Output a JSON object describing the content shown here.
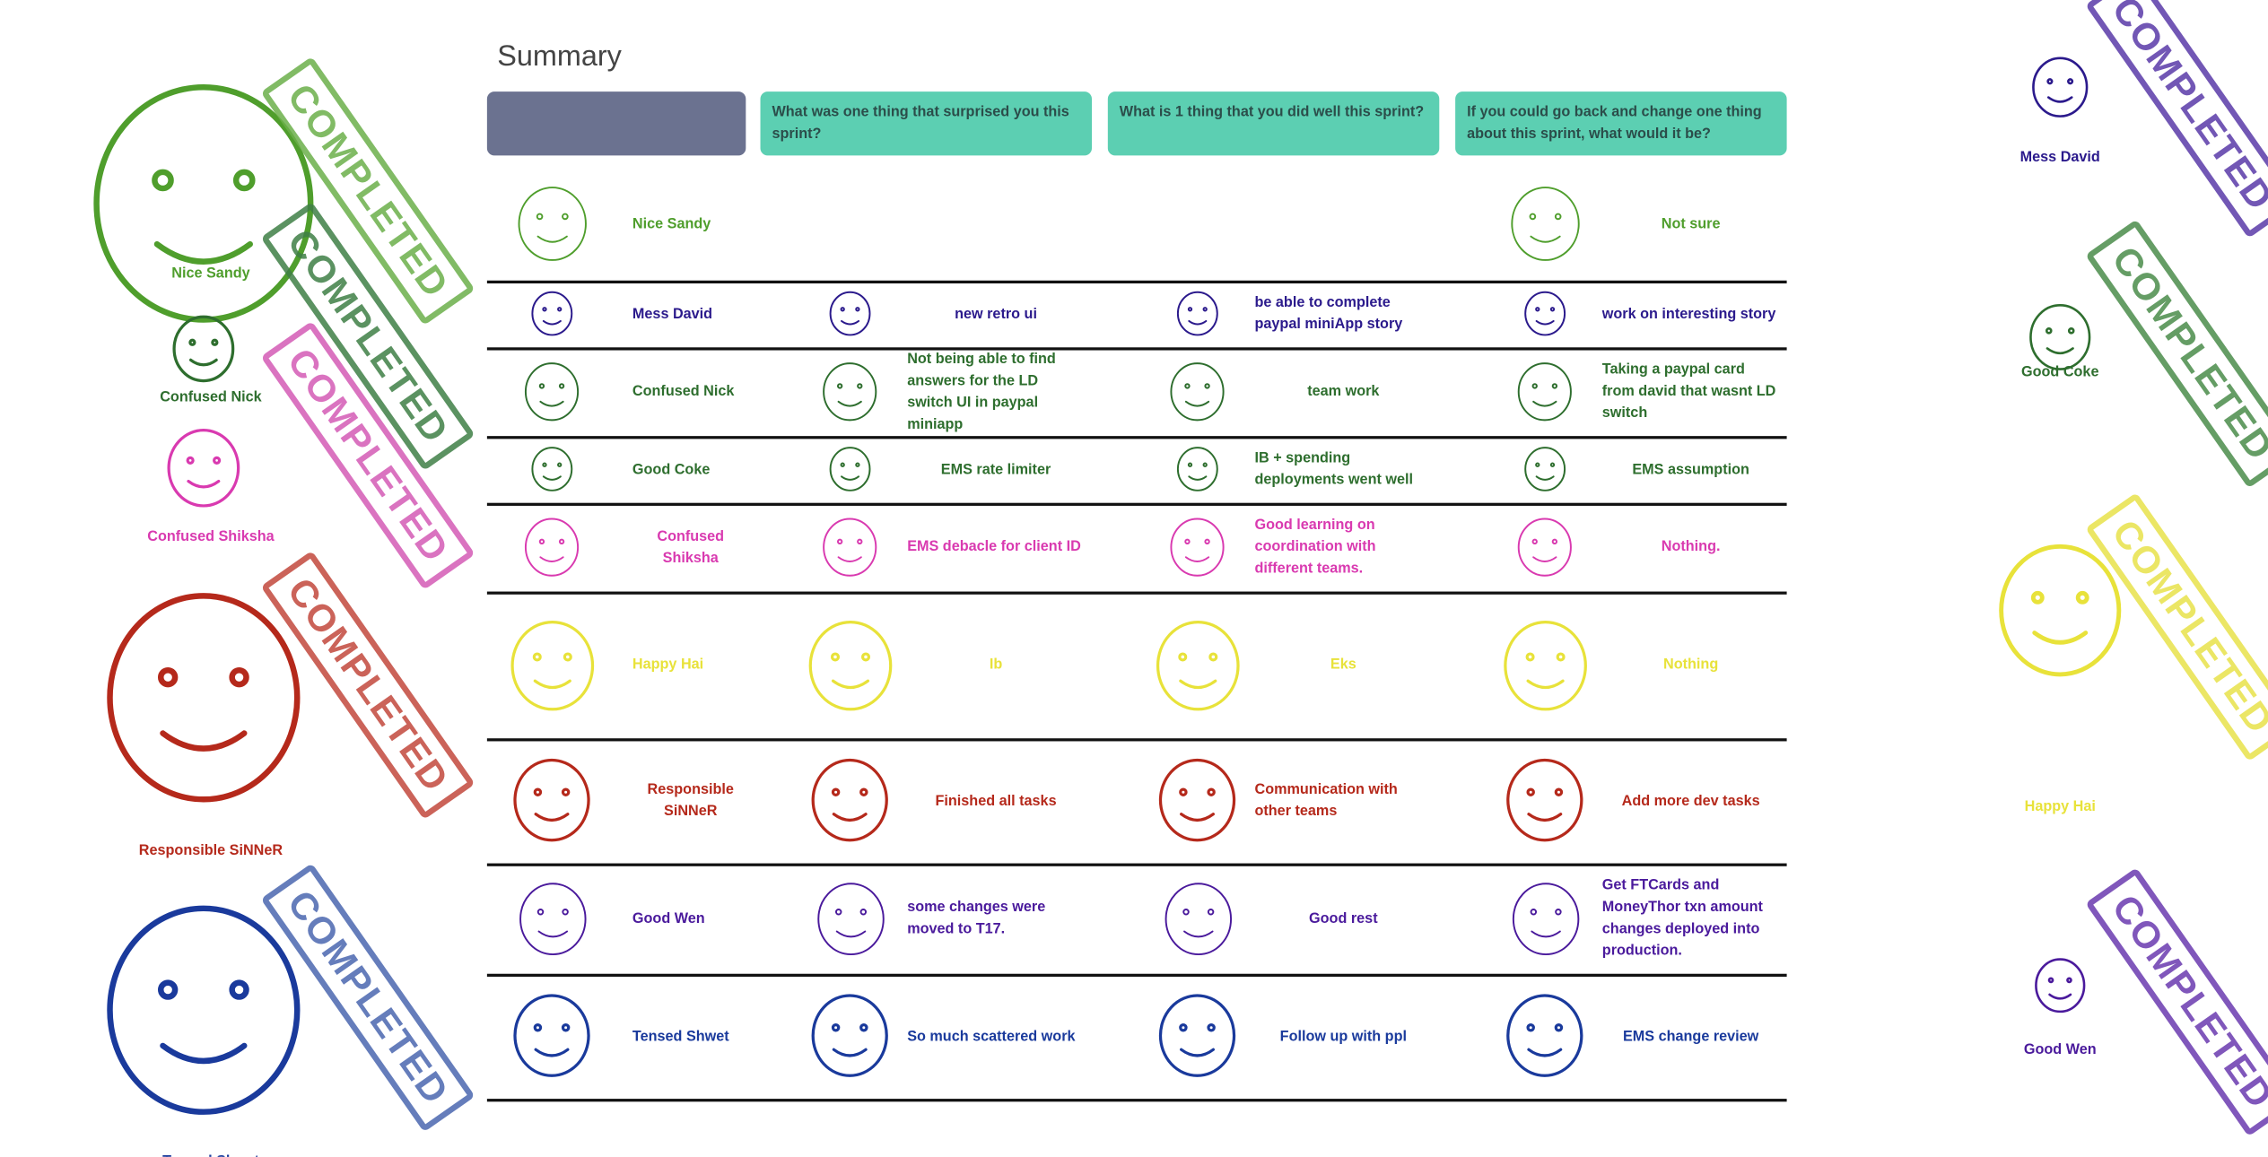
{
  "title": "Summary",
  "stamp": "COMPLETED",
  "columns": [
    "What was one thing that surprised you this sprint?",
    "What is 1 thing that you did well this sprint?",
    "If you could go back and change one thing about this sprint, what would it be?"
  ],
  "rows": [
    {
      "name": "Nice Sandy",
      "color": "#4f9e2c",
      "answers": [
        null,
        null,
        "Not sure"
      ]
    },
    {
      "name": "Mess David",
      "color": "#2b1a8c",
      "answers": [
        "new retro ui",
        "be able to complete paypal miniApp story",
        "work on interesting story"
      ]
    },
    {
      "name": "Confused Nick",
      "color": "#2e6e2e",
      "answers": [
        "Not being able to find answers for the LD switch UI in paypal miniapp",
        "team work",
        "Taking a paypal card from david that wasnt LD switch"
      ]
    },
    {
      "name": "Good Coke",
      "color": "#2e6e2e",
      "answers": [
        "EMS rate limiter",
        "IB + spending deployments went well",
        "EMS assumption"
      ]
    },
    {
      "name": "Confused Shiksha",
      "color": "#d93ab0",
      "answers": [
        "EMS debacle for client ID",
        "Good learning on coordination with different teams.",
        "Nothing."
      ]
    },
    {
      "name": "Happy Hai",
      "color": "#e8e23a",
      "answers": [
        "Ib",
        "Eks",
        "Nothing"
      ]
    },
    {
      "name": "Responsible SiNNeR",
      "color": "#b5291b",
      "answers": [
        "Finished all tasks",
        "Communication with other teams",
        "Add more dev tasks"
      ]
    },
    {
      "name": "Good Wen",
      "color": "#4a1a9c",
      "answers": [
        "some changes were moved to T17.",
        "Good rest",
        "Get FTCards and MoneyThor txn amount changes deployed into production."
      ]
    },
    {
      "name": "Tensed Shwet",
      "color": "#1a3a9c",
      "answers": [
        "So much scattered work",
        "Follow up with ppl",
        "EMS change review"
      ]
    }
  ],
  "left_avatars": [
    {
      "name": "Nice Sandy",
      "color": "#4f9e2c",
      "stamp_color": "#6cb04a"
    },
    {
      "name": "Confused Nick",
      "color": "#2e6e2e",
      "stamp_color": "#3f7f46"
    },
    {
      "name": "Confused Shiksha",
      "color": "#d93ab0",
      "stamp_color": "#d45bb5"
    },
    {
      "name": "Responsible SiNNeR",
      "color": "#b5291b",
      "stamp_color": "#c2483d"
    },
    {
      "name": "Tensed Shwet",
      "color": "#1a3a9c",
      "stamp_color": "#4a67b0"
    }
  ],
  "right_avatars": [
    {
      "name": "Mess David",
      "color": "#2b1a8c",
      "stamp_color": "#5a3aa8"
    },
    {
      "name": "Good Coke",
      "color": "#2e6e2e",
      "stamp_color": "#4a8c4a"
    },
    {
      "name": "Happy Hai",
      "color": "#e8e23a",
      "stamp_color": "#e8e24a"
    },
    {
      "name": "Good Wen",
      "color": "#4a1a9c",
      "stamp_color": "#6a3ab0"
    }
  ]
}
